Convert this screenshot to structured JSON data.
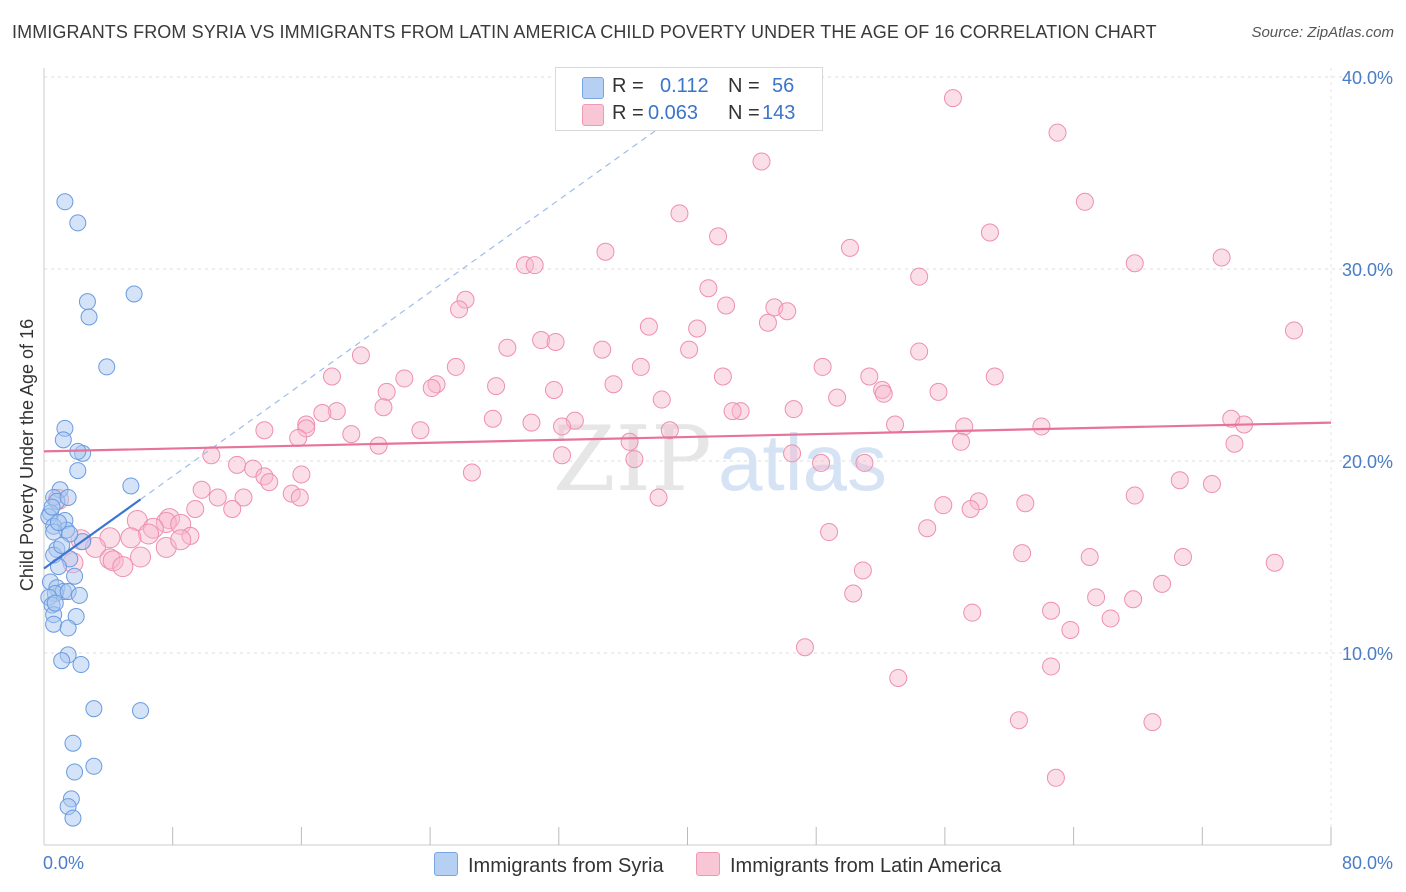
{
  "title": "IMMIGRANTS FROM SYRIA VS IMMIGRANTS FROM LATIN AMERICA CHILD POVERTY UNDER THE AGE OF 16 CORRELATION CHART",
  "source": "Source: ZipAtlas.com",
  "legend": {
    "rows": [
      {
        "r_label": "R =",
        "r_value": "0.112",
        "n_label": "N =",
        "n_value": "56"
      },
      {
        "r_label": "R =",
        "r_value": "0.063",
        "n_label": "N =",
        "n_value": "143"
      }
    ]
  },
  "series_labels": [
    "Immigrants from Syria",
    "Immigrants from Latin America"
  ],
  "colors": {
    "syria_fill": "#a9c8f0",
    "syria_stroke": "#6a9be0",
    "syria_line": "#3b75d6",
    "latam_fill": "#f7b9cb",
    "latam_stroke": "#ef8fae",
    "latam_line": "#e7739a",
    "axis_text": "#4a7cc7",
    "grid": "#dddddd"
  },
  "watermark": {
    "zip": "ZIP",
    "atlas": "atlas"
  },
  "chart_data": {
    "type": "scatter",
    "title": "IMMIGRANTS FROM SYRIA VS IMMIGRANTS FROM LATIN AMERICA CHILD POVERTY UNDER THE AGE OF 16 CORRELATION CHART",
    "xlabel": "",
    "ylabel": "Child Poverty Under the Age of 16",
    "xlim": [
      0,
      80
    ],
    "ylim": [
      0,
      40
    ],
    "x_tick_labels": [
      "0.0%",
      "80.0%"
    ],
    "y_tick_labels": [
      "10.0%",
      "20.0%",
      "30.0%",
      "40.0%"
    ],
    "y_ticks": [
      10,
      20,
      30,
      40
    ],
    "x_minor_ticks": [
      8,
      16,
      24,
      32,
      40,
      48,
      56,
      64,
      72,
      80
    ],
    "series": [
      {
        "name": "Immigrants from Syria",
        "R": 0.112,
        "N": 56,
        "trend": {
          "x": [
            0,
            6
          ],
          "y": [
            14.4,
            18.0
          ],
          "dashed_to": [
            40,
            38.4
          ]
        },
        "points": [
          [
            1.3,
            33.5
          ],
          [
            2.1,
            32.4
          ],
          [
            2.7,
            28.3
          ],
          [
            5.6,
            28.7
          ],
          [
            2.8,
            27.5
          ],
          [
            3.9,
            24.9
          ],
          [
            1.3,
            21.7
          ],
          [
            1.2,
            21.1
          ],
          [
            2.4,
            20.4
          ],
          [
            2.1,
            20.5
          ],
          [
            2.1,
            19.5
          ],
          [
            5.4,
            18.7
          ],
          [
            1.0,
            18.5
          ],
          [
            0.6,
            18.1
          ],
          [
            0.8,
            17.9
          ],
          [
            1.5,
            18.1
          ],
          [
            0.4,
            17.3
          ],
          [
            0.3,
            17.1
          ],
          [
            1.3,
            16.9
          ],
          [
            0.6,
            16.6
          ],
          [
            1.4,
            16.4
          ],
          [
            0.6,
            16.3
          ],
          [
            2.4,
            15.8
          ],
          [
            0.8,
            15.4
          ],
          [
            0.6,
            15.1
          ],
          [
            1.6,
            14.9
          ],
          [
            0.4,
            13.7
          ],
          [
            0.8,
            13.4
          ],
          [
            1.2,
            13.2
          ],
          [
            0.7,
            13.1
          ],
          [
            1.5,
            13.2
          ],
          [
            0.3,
            12.9
          ],
          [
            0.5,
            12.5
          ],
          [
            0.6,
            12.0
          ],
          [
            2.0,
            11.9
          ],
          [
            0.6,
            11.5
          ],
          [
            1.5,
            11.3
          ],
          [
            1.5,
            9.9
          ],
          [
            1.1,
            9.6
          ],
          [
            2.3,
            9.4
          ],
          [
            3.1,
            7.1
          ],
          [
            6.0,
            7.0
          ],
          [
            1.8,
            5.3
          ],
          [
            3.1,
            4.1
          ],
          [
            1.9,
            3.8
          ],
          [
            1.7,
            2.4
          ],
          [
            1.5,
            2.0
          ],
          [
            1.8,
            1.4
          ],
          [
            0.9,
            16.8
          ],
          [
            1.6,
            16.2
          ],
          [
            0.9,
            14.5
          ],
          [
            0.5,
            17.6
          ],
          [
            1.1,
            15.6
          ],
          [
            2.2,
            13.0
          ],
          [
            0.7,
            12.6
          ],
          [
            1.9,
            14.0
          ]
        ]
      },
      {
        "name": "Immigrants from Latin America",
        "R": 0.063,
        "N": 143,
        "trend": {
          "x": [
            0,
            80
          ],
          "y": [
            20.5,
            22.0
          ]
        },
        "points": [
          [
            56.5,
            38.9
          ],
          [
            63.0,
            37.1
          ],
          [
            44.6,
            35.6
          ],
          [
            64.7,
            33.5
          ],
          [
            39.5,
            32.9
          ],
          [
            58.8,
            31.9
          ],
          [
            41.9,
            31.7
          ],
          [
            50.1,
            31.1
          ],
          [
            34.9,
            30.9
          ],
          [
            73.2,
            30.6
          ],
          [
            29.9,
            30.2
          ],
          [
            30.5,
            30.2
          ],
          [
            67.8,
            30.3
          ],
          [
            54.4,
            29.6
          ],
          [
            41.3,
            29.0
          ],
          [
            26.2,
            28.4
          ],
          [
            25.8,
            27.9
          ],
          [
            42.4,
            28.1
          ],
          [
            45.4,
            28.0
          ],
          [
            46.2,
            27.8
          ],
          [
            45.0,
            27.2
          ],
          [
            77.7,
            26.8
          ],
          [
            37.6,
            27.0
          ],
          [
            40.6,
            26.9
          ],
          [
            30.9,
            26.3
          ],
          [
            31.8,
            26.2
          ],
          [
            28.8,
            25.9
          ],
          [
            40.1,
            25.8
          ],
          [
            34.7,
            25.8
          ],
          [
            54.4,
            25.7
          ],
          [
            19.7,
            25.5
          ],
          [
            37.1,
            24.9
          ],
          [
            48.4,
            24.9
          ],
          [
            25.6,
            24.9
          ],
          [
            51.3,
            24.4
          ],
          [
            17.9,
            24.4
          ],
          [
            35.4,
            24.0
          ],
          [
            22.4,
            24.3
          ],
          [
            59.1,
            24.4
          ],
          [
            42.2,
            24.4
          ],
          [
            24.4,
            24.0
          ],
          [
            28.1,
            23.9
          ],
          [
            21.3,
            23.6
          ],
          [
            24.1,
            23.8
          ],
          [
            31.7,
            23.7
          ],
          [
            52.1,
            23.7
          ],
          [
            55.6,
            23.6
          ],
          [
            49.3,
            23.3
          ],
          [
            38.4,
            23.2
          ],
          [
            52.2,
            23.5
          ],
          [
            21.1,
            22.8
          ],
          [
            43.3,
            22.6
          ],
          [
            46.6,
            22.7
          ],
          [
            42.8,
            22.6
          ],
          [
            18.2,
            22.6
          ],
          [
            17.3,
            22.5
          ],
          [
            27.9,
            22.2
          ],
          [
            16.3,
            21.9
          ],
          [
            33.0,
            22.1
          ],
          [
            52.9,
            21.9
          ],
          [
            30.3,
            22.0
          ],
          [
            16.3,
            21.7
          ],
          [
            13.7,
            21.6
          ],
          [
            19.1,
            21.4
          ],
          [
            23.4,
            21.6
          ],
          [
            32.2,
            21.8
          ],
          [
            38.9,
            21.6
          ],
          [
            57.2,
            21.8
          ],
          [
            62.0,
            21.8
          ],
          [
            73.8,
            22.2
          ],
          [
            74.6,
            21.9
          ],
          [
            20.8,
            20.8
          ],
          [
            15.8,
            21.2
          ],
          [
            57.0,
            21.0
          ],
          [
            74.0,
            20.9
          ],
          [
            36.4,
            21.0
          ],
          [
            32.2,
            20.3
          ],
          [
            10.4,
            20.3
          ],
          [
            46.5,
            20.4
          ],
          [
            36.7,
            20.1
          ],
          [
            12.0,
            19.8
          ],
          [
            13.0,
            19.6
          ],
          [
            48.3,
            19.9
          ],
          [
            51.0,
            19.9
          ],
          [
            26.6,
            19.4
          ],
          [
            16.0,
            19.3
          ],
          [
            13.7,
            19.2
          ],
          [
            14.0,
            18.9
          ],
          [
            70.6,
            19.0
          ],
          [
            72.6,
            18.8
          ],
          [
            9.8,
            18.5
          ],
          [
            10.8,
            18.1
          ],
          [
            15.4,
            18.3
          ],
          [
            61.0,
            17.8
          ],
          [
            12.4,
            18.1
          ],
          [
            38.2,
            18.1
          ],
          [
            67.8,
            18.2
          ],
          [
            15.9,
            18.1
          ],
          [
            55.9,
            17.7
          ],
          [
            58.1,
            17.9
          ],
          [
            57.6,
            17.5
          ],
          [
            9.4,
            17.5
          ],
          [
            11.7,
            17.5
          ],
          [
            7.8,
            17.0
          ],
          [
            7.6,
            16.8
          ],
          [
            5.8,
            16.9
          ],
          [
            8.5,
            16.7
          ],
          [
            6.8,
            16.5
          ],
          [
            54.9,
            16.5
          ],
          [
            48.8,
            16.3
          ],
          [
            6.5,
            16.2
          ],
          [
            9.1,
            16.1
          ],
          [
            4.1,
            16.0
          ],
          [
            5.4,
            16.0
          ],
          [
            2.3,
            15.9
          ],
          [
            3.2,
            15.5
          ],
          [
            7.6,
            15.5
          ],
          [
            8.5,
            15.9
          ],
          [
            6.0,
            15.0
          ],
          [
            4.1,
            14.9
          ],
          [
            1.8,
            14.7
          ],
          [
            4.3,
            14.8
          ],
          [
            4.9,
            14.5
          ],
          [
            60.8,
            15.2
          ],
          [
            65.0,
            15.0
          ],
          [
            70.8,
            15.0
          ],
          [
            76.5,
            14.7
          ],
          [
            50.9,
            14.3
          ],
          [
            69.5,
            13.6
          ],
          [
            50.3,
            13.1
          ],
          [
            65.4,
            12.9
          ],
          [
            67.7,
            12.8
          ],
          [
            57.7,
            12.1
          ],
          [
            62.6,
            12.2
          ],
          [
            66.3,
            11.8
          ],
          [
            63.8,
            11.2
          ],
          [
            47.3,
            10.3
          ],
          [
            53.1,
            8.7
          ],
          [
            62.6,
            9.3
          ],
          [
            60.6,
            6.5
          ],
          [
            68.9,
            6.4
          ],
          [
            62.9,
            3.5
          ],
          [
            0.9,
            18.0
          ]
        ]
      }
    ]
  }
}
